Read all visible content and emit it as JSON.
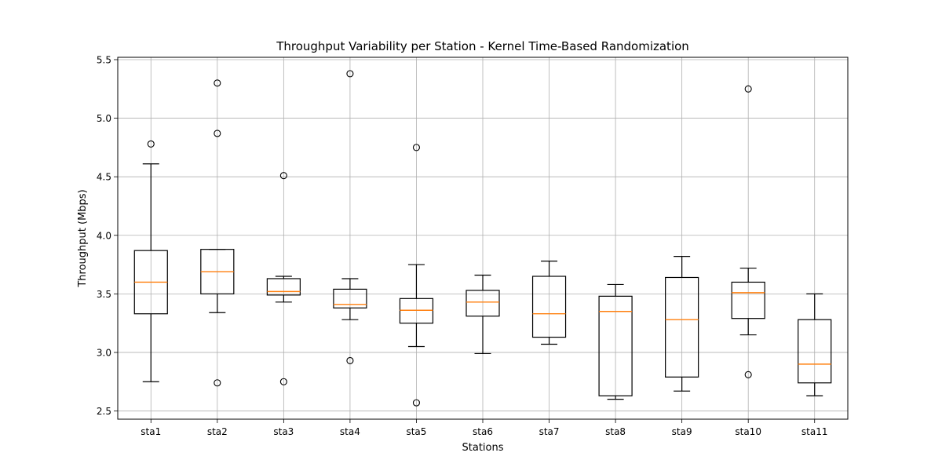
{
  "chart_data": {
    "type": "box",
    "title": "Throughput Variability per Station - Kernel Time-Based Randomization",
    "xlabel": "Stations",
    "ylabel": "Throughput (Mbps)",
    "ylim": [
      2.43,
      5.52
    ],
    "yticks": [
      "2.5",
      "3.0",
      "3.5",
      "4.0",
      "4.5",
      "5.0",
      "5.5"
    ],
    "grid": true,
    "categories": [
      "sta1",
      "sta2",
      "sta3",
      "sta4",
      "sta5",
      "sta6",
      "sta7",
      "sta8",
      "sta9",
      "sta10",
      "sta11"
    ],
    "boxes": [
      {
        "label": "sta1",
        "whisker_low": 2.75,
        "q1": 3.33,
        "median": 3.6,
        "q3": 3.87,
        "whisker_high": 4.61,
        "outliers": [
          4.78
        ]
      },
      {
        "label": "sta2",
        "whisker_low": 3.34,
        "q1": 3.5,
        "median": 3.69,
        "q3": 3.88,
        "whisker_high": 3.88,
        "outliers": [
          2.74,
          4.87,
          5.3
        ]
      },
      {
        "label": "sta3",
        "whisker_low": 3.43,
        "q1": 3.49,
        "median": 3.52,
        "q3": 3.63,
        "whisker_high": 3.65,
        "outliers": [
          2.75,
          4.51
        ]
      },
      {
        "label": "sta4",
        "whisker_low": 3.28,
        "q1": 3.38,
        "median": 3.41,
        "q3": 3.54,
        "whisker_high": 3.63,
        "outliers": [
          2.93,
          5.38
        ]
      },
      {
        "label": "sta5",
        "whisker_low": 3.05,
        "q1": 3.25,
        "median": 3.36,
        "q3": 3.46,
        "whisker_high": 3.75,
        "outliers": [
          2.57,
          4.75
        ]
      },
      {
        "label": "sta6",
        "whisker_low": 2.99,
        "q1": 3.31,
        "median": 3.43,
        "q3": 3.53,
        "whisker_high": 3.66,
        "outliers": []
      },
      {
        "label": "sta7",
        "whisker_low": 3.07,
        "q1": 3.13,
        "median": 3.33,
        "q3": 3.65,
        "whisker_high": 3.78,
        "outliers": []
      },
      {
        "label": "sta8",
        "whisker_low": 2.6,
        "q1": 2.63,
        "median": 3.35,
        "q3": 3.48,
        "whisker_high": 3.58,
        "outliers": []
      },
      {
        "label": "sta9",
        "whisker_low": 2.67,
        "q1": 2.79,
        "median": 3.28,
        "q3": 3.64,
        "whisker_high": 3.82,
        "outliers": []
      },
      {
        "label": "sta10",
        "whisker_low": 3.15,
        "q1": 3.29,
        "median": 3.51,
        "q3": 3.6,
        "whisker_high": 3.72,
        "outliers": [
          2.81,
          5.25
        ]
      },
      {
        "label": "sta11",
        "whisker_low": 2.63,
        "q1": 2.74,
        "median": 2.9,
        "q3": 3.28,
        "whisker_high": 3.5,
        "outliers": []
      }
    ],
    "colors": {
      "box": "#000000",
      "median": "#ff7f0e",
      "grid": "#b0b0b0",
      "outlier_edge": "#000000"
    }
  }
}
